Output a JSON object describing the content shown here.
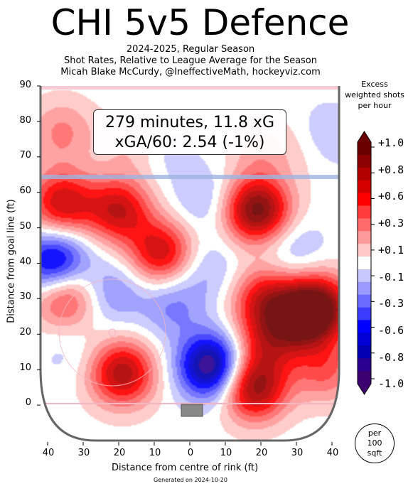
{
  "header": {
    "title": "CHI 5v5 Defence",
    "line1": "2024-2025, Regular Season",
    "line2": "Shot Rates, Relative to League Average for the Season",
    "line3": "Micah Blake McCurdy, @IneffectiveMath, hockeyviz.com"
  },
  "annotation": {
    "line1": "279 minutes, 11.8 xG",
    "line2": "xGA/60: 2.54 (-1%)"
  },
  "colorbar": {
    "title_lines": [
      "Excess",
      "weighted shots",
      "per hour"
    ],
    "ticks": [
      "+1.0",
      "+0.8",
      "+0.6",
      "+0.3",
      "+0.1",
      "-0.1",
      "-0.3",
      "-0.6",
      "-0.8",
      "-1.0"
    ],
    "colors": [
      "#6b0000",
      "#8b0000",
      "#b00000",
      "#d40000",
      "#ff0000",
      "#ff3b3b",
      "#ff6b6b",
      "#ff9a9a",
      "#ffc8c8",
      "#ffffff",
      "#c8c8ff",
      "#9a9aff",
      "#6b6bff",
      "#3b3bff",
      "#0000ff",
      "#0000d4",
      "#0000b0",
      "#2a0090",
      "#3c0070"
    ],
    "extremes": {
      "top": "#6b0000",
      "bottom": "#3c0070"
    }
  },
  "scale_note": [
    "per",
    "100",
    "sqft"
  ],
  "footer": "Generated on 2024-10-20",
  "chart_data": {
    "type": "heatmap",
    "xlabel": "Distance from centre of rink (ft)",
    "ylabel": "Distance from goal line (ft)",
    "xlim": [
      42,
      -42
    ],
    "ylim": [
      -10,
      90
    ],
    "x_ticks": [
      "40",
      "30",
      "20",
      "10",
      "0",
      "10",
      "20",
      "30",
      "40"
    ],
    "y_ticks": [
      "90",
      "80",
      "70",
      "60",
      "50",
      "40",
      "30",
      "20",
      "10",
      "0"
    ],
    "blobs": [
      {
        "x": 36,
        "y": 57,
        "v": 0.7
      },
      {
        "x": 20,
        "y": 55,
        "v": 0.7
      },
      {
        "x": 8,
        "y": 43,
        "v": 0.7
      },
      {
        "x": -19,
        "y": 55,
        "v": 1.0
      },
      {
        "x": 35,
        "y": 31,
        "v": 0.6
      },
      {
        "x": 19,
        "y": 9,
        "v": 0.8
      },
      {
        "x": -18,
        "y": 5,
        "v": 0.9
      },
      {
        "x": -21,
        "y": 30,
        "v": 0.6
      },
      {
        "x": -32,
        "y": 25,
        "v": 0.8
      },
      {
        "x": -37,
        "y": 28,
        "v": 0.7
      },
      {
        "x": 36,
        "y": 77,
        "v": 0.3
      },
      {
        "x": 15,
        "y": 73,
        "v": 0.2
      },
      {
        "x": -20,
        "y": 72,
        "v": 0.2
      },
      {
        "x": -35,
        "y": 73,
        "v": 0.2
      },
      {
        "x": -22,
        "y": 18,
        "v": 0.5
      },
      {
        "x": -6,
        "y": 11,
        "v": -1.0
      },
      {
        "x": 38,
        "y": 40,
        "v": -0.8
      },
      {
        "x": 22,
        "y": 32,
        "v": -0.3
      },
      {
        "x": 5,
        "y": 28,
        "v": -0.3
      },
      {
        "x": -4,
        "y": 58,
        "v": -0.2
      },
      {
        "x": 8,
        "y": 72,
        "v": -0.15
      },
      {
        "x": -5,
        "y": 38,
        "v": -0.2
      },
      {
        "x": -38,
        "y": 75,
        "v": -0.3
      },
      {
        "x": 34,
        "y": 15,
        "v": -0.1
      },
      {
        "x": -29,
        "y": 44,
        "v": -0.2
      },
      {
        "x": -38,
        "y": 10,
        "v": 0.4
      }
    ]
  }
}
